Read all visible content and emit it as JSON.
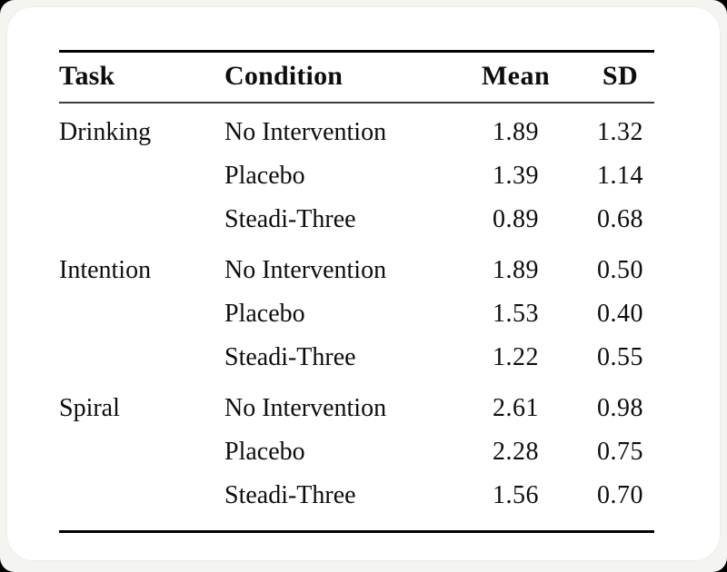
{
  "table": {
    "columns": [
      "Task",
      "Condition",
      "Mean",
      "SD"
    ],
    "groups": [
      {
        "task": "Drinking",
        "rows": [
          {
            "condition": "No Intervention",
            "mean": "1.89",
            "sd": "1.32"
          },
          {
            "condition": "Placebo",
            "mean": "1.39",
            "sd": "1.14"
          },
          {
            "condition": "Steadi-Three",
            "mean": "0.89",
            "sd": "0.68"
          }
        ]
      },
      {
        "task": "Intention",
        "rows": [
          {
            "condition": "No Intervention",
            "mean": "1.89",
            "sd": "0.50"
          },
          {
            "condition": "Placebo",
            "mean": "1.53",
            "sd": "0.40"
          },
          {
            "condition": "Steadi-Three",
            "mean": "1.22",
            "sd": "0.55"
          }
        ]
      },
      {
        "task": "Spiral",
        "rows": [
          {
            "condition": "No Intervention",
            "mean": "2.61",
            "sd": "0.98"
          },
          {
            "condition": "Placebo",
            "mean": "2.28",
            "sd": "0.75"
          },
          {
            "condition": "Steadi-Three",
            "mean": "1.56",
            "sd": "0.70"
          }
        ]
      }
    ]
  },
  "chart_data": {
    "type": "table",
    "columns": [
      "Task",
      "Condition",
      "Mean",
      "SD"
    ],
    "rows": [
      [
        "Drinking",
        "No Intervention",
        1.89,
        1.32
      ],
      [
        "Drinking",
        "Placebo",
        1.39,
        1.14
      ],
      [
        "Drinking",
        "Steadi-Three",
        0.89,
        0.68
      ],
      [
        "Intention",
        "No Intervention",
        1.89,
        0.5
      ],
      [
        "Intention",
        "Placebo",
        1.53,
        0.4
      ],
      [
        "Intention",
        "Steadi-Three",
        1.22,
        0.55
      ],
      [
        "Spiral",
        "No Intervention",
        2.61,
        0.98
      ],
      [
        "Spiral",
        "Placebo",
        2.28,
        0.75
      ],
      [
        "Spiral",
        "Steadi-Three",
        1.56,
        0.7
      ]
    ]
  },
  "colors": {
    "card_background": "#ffffff",
    "frame_background": "#f4f5f1",
    "text": "#0d0d0d",
    "rule_top": "#000000",
    "rule_mid": "#3a3a3a",
    "rule_bottom": "#000000"
  }
}
